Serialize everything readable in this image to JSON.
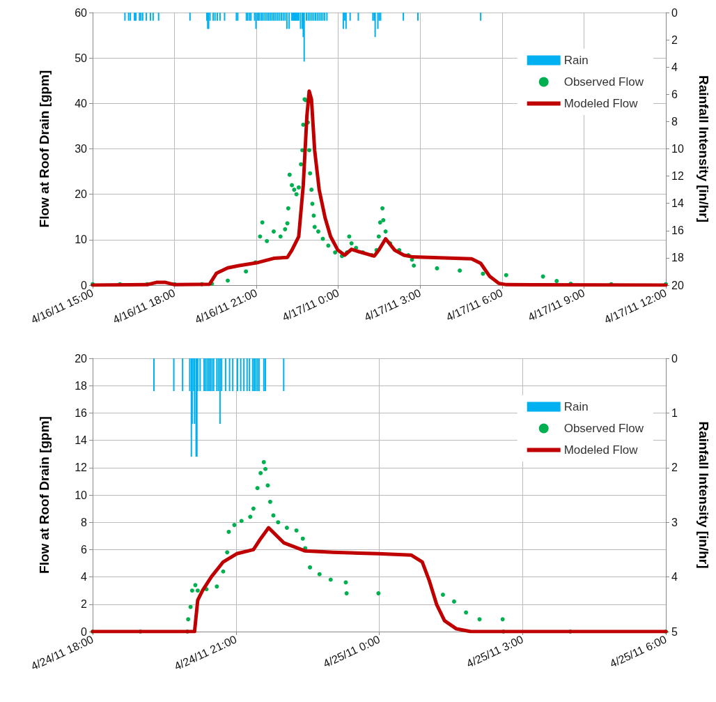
{
  "chart_data": [
    {
      "type": "line",
      "ylabel": "Flow at Roof Drain [gpm]",
      "y2label": "Rainfall Intensity [in/hr]",
      "xlim": [
        "--04-16T15:00",
        "--04-17T12:00"
      ],
      "xticks": [
        {
          "value": "--04-16T15:00",
          "label": "4/16/11 15:00"
        },
        {
          "value": "--04-16T18:00",
          "label": "4/16/11 18:00"
        },
        {
          "value": "--04-16T21:00",
          "label": "4/16/11 21:00"
        },
        {
          "value": "--04-17T00:00",
          "label": "4/17/11 0:00"
        },
        {
          "value": "--04-17T03:00",
          "label": "4/17/11 3:00"
        },
        {
          "value": "--04-17T06:00",
          "label": "4/17/11 6:00"
        },
        {
          "value": "--04-17T09:00",
          "label": "4/17/11 9:00"
        },
        {
          "value": "--04-17T12:00",
          "label": "4/17/11 12:00"
        }
      ],
      "ylim": [
        0,
        60
      ],
      "yticks": [
        0,
        10,
        20,
        30,
        40,
        50,
        60
      ],
      "y2lim": [
        20,
        0
      ],
      "y2ticks": [
        0,
        2,
        4,
        6,
        8,
        10,
        12,
        14,
        16,
        18,
        20
      ],
      "grid": true,
      "legend": "top right",
      "series": [
        {
          "name": "Rain",
          "type": "bar",
          "axis": "y2",
          "color": "#00b0f0",
          "x": [
            "--04-16T16:11",
            "--04-16T16:19",
            "--04-16T16:23",
            "--04-16T16:32",
            "--04-16T16:35",
            "--04-16T16:43",
            "--04-16T16:46",
            "--04-16T16:50",
            "--04-16T16:58",
            "--04-16T17:07",
            "--04-16T17:13",
            "--04-16T17:25",
            "--04-16T18:34",
            "--04-16T19:11",
            "--04-16T19:13",
            "--04-16T19:15",
            "--04-16T19:18",
            "--04-16T19:25",
            "--04-16T19:29",
            "--04-16T19:34",
            "--04-16T19:40",
            "--04-16T19:50",
            "--04-16T20:16",
            "--04-16T20:19",
            "--04-16T20:38",
            "--04-16T20:41",
            "--04-16T20:45",
            "--04-16T20:48",
            "--04-16T20:56",
            "--04-16T20:59",
            "--04-16T21:03",
            "--04-16T21:06",
            "--04-16T21:10",
            "--04-16T21:13",
            "--04-16T21:17",
            "--04-16T21:21",
            "--04-16T21:25",
            "--04-16T21:28",
            "--04-16T21:32",
            "--04-16T21:36",
            "--04-16T21:39",
            "--04-16T21:43",
            "--04-16T21:47",
            "--04-16T21:51",
            "--04-16T21:55",
            "--04-16T21:59",
            "--04-16T22:03",
            "--04-16T22:07",
            "--04-16T22:12",
            "--04-16T22:18",
            "--04-16T22:21",
            "--04-16T22:24",
            "--04-16T22:27",
            "--04-16T22:30",
            "--04-16T22:33",
            "--04-16T22:37",
            "--04-16T22:41",
            "--04-16T22:43",
            "--04-16T22:45",
            "--04-16T22:50",
            "--04-16T22:54",
            "--04-16T22:58",
            "--04-16T23:02",
            "--04-16T23:06",
            "--04-16T23:10",
            "--04-16T23:14",
            "--04-16T23:18",
            "--04-16T23:22",
            "--04-16T23:26",
            "--04-16T23:30",
            "--04-16T23:35",
            "--04-17T00:11",
            "--04-17T00:14",
            "--04-17T00:17",
            "--04-17T00:26",
            "--04-17T00:44",
            "--04-17T01:16",
            "--04-17T01:19",
            "--04-17T01:21",
            "--04-17T01:27",
            "--04-17T01:30",
            "--04-17T01:33",
            "--04-17T02:23",
            "--04-17T02:55",
            "--04-17T05:13"
          ],
          "values": [
            0.6,
            0.6,
            0.6,
            0.6,
            0.6,
            0.6,
            0.6,
            0.6,
            0.6,
            0.6,
            0.6,
            0.6,
            0.6,
            0.6,
            1.2,
            1.2,
            0.6,
            0.6,
            0.6,
            0.6,
            0.6,
            0.6,
            0.6,
            0.6,
            0.6,
            0.6,
            0.6,
            0.6,
            0.6,
            1.2,
            0.6,
            0.6,
            0.6,
            0.6,
            0.6,
            0.6,
            0.6,
            0.6,
            0.6,
            0.6,
            0.6,
            0.6,
            0.6,
            0.6,
            0.6,
            0.6,
            0.6,
            1.2,
            1.2,
            0.6,
            0.6,
            0.6,
            0.6,
            0.6,
            0.6,
            1.2,
            1.2,
            1.8,
            3.6,
            0.6,
            0.6,
            0.6,
            0.6,
            0.6,
            0.6,
            0.6,
            0.6,
            0.6,
            0.6,
            0.6,
            0.6,
            1.2,
            0.6,
            1.2,
            0.6,
            0.6,
            0.6,
            0.6,
            1.8,
            1.2,
            0.6,
            0.6,
            0.6,
            0.6,
            0.6
          ]
        },
        {
          "name": "Observed Flow",
          "type": "scatter",
          "marker": "circle",
          "color": "#00b050",
          "x": [
            "--04-16T15:00",
            "--04-16T16:00",
            "--04-16T17:00",
            "--04-16T18:00",
            "--04-16T19:00",
            "--04-16T19:22",
            "--04-16T19:57",
            "--04-16T20:37",
            "--04-16T20:58",
            "--04-16T21:08",
            "--04-16T21:13",
            "--04-16T21:23",
            "--04-16T21:38",
            "--04-16T21:53",
            "--04-16T22:03",
            "--04-16T22:08",
            "--04-16T22:10",
            "--04-16T22:13",
            "--04-16T22:18",
            "--04-16T22:23",
            "--04-16T22:28",
            "--04-16T22:33",
            "--04-16T22:38",
            "--04-16T22:41",
            "--04-16T22:43",
            "--04-16T22:46",
            "--04-16T22:48",
            "--04-16T22:53",
            "--04-16T22:56",
            "--04-16T22:58",
            "--04-16T23:01",
            "--04-16T23:03",
            "--04-16T23:06",
            "--04-16T23:08",
            "--04-16T23:16",
            "--04-16T23:26",
            "--04-16T23:38",
            "--04-16T23:53",
            "--04-17T00:08",
            "--04-17T00:19",
            "--04-17T00:24",
            "--04-17T00:29",
            "--04-17T00:39",
            "--04-17T00:54",
            "--04-17T01:14",
            "--04-17T01:24",
            "--04-17T01:29",
            "--04-17T01:32",
            "--04-17T01:37",
            "--04-17T01:39",
            "--04-17T01:44",
            "--04-17T01:54",
            "--04-17T02:14",
            "--04-17T02:34",
            "--04-17T02:42",
            "--04-17T02:46",
            "--04-17T03:37",
            "--04-17T04:27",
            "--04-17T05:18",
            "--04-17T06:09",
            "--04-17T07:30",
            "--04-17T08:00",
            "--04-17T08:31",
            "--04-17T10:00",
            "--04-17T12:00"
          ],
          "values": [
            0.2,
            0.2,
            0.2,
            0.2,
            0.2,
            0.3,
            1,
            3,
            5,
            10.7,
            13.8,
            9.7,
            11.8,
            10.7,
            12.3,
            13.6,
            16.9,
            24.3,
            22,
            21,
            20,
            21.5,
            26.6,
            29.7,
            35.3,
            40.9,
            40.7,
            35.8,
            29.7,
            24.6,
            21,
            17.9,
            15.3,
            12.8,
            11.8,
            10.2,
            8.7,
            7.2,
            6.4,
            7.2,
            10.7,
            9.2,
            8.2,
            7.2,
            6.6,
            7.7,
            10.7,
            13.8,
            16.9,
            14.3,
            11.8,
            9.2,
            7.7,
            6.6,
            5.6,
            4.3,
            3.7,
            3.2,
            2.5,
            2.2,
            1.9,
            0.9,
            0.3,
            0.2,
            0.2
          ]
        },
        {
          "name": "Modeled Flow",
          "type": "line",
          "marker": "none",
          "color": "#c00000",
          "x": [
            "--04-16T15:00",
            "--04-16T17:00",
            "--04-16T17:20",
            "--04-16T17:40",
            "--04-16T18:00",
            "--04-16T19:17",
            "--04-16T19:32",
            "--04-16T19:57",
            "--04-16T20:22",
            "--04-16T21:00",
            "--04-16T21:38",
            "--04-16T22:08",
            "--04-16T22:18",
            "--04-16T22:33",
            "--04-16T22:43",
            "--04-16T22:51",
            "--04-16T22:56",
            "--04-16T23:01",
            "--04-16T23:08",
            "--04-16T23:18",
            "--04-16T23:31",
            "--04-16T23:43",
            "--04-16T23:59",
            "--04-17T00:14",
            "--04-17T00:29",
            "--04-17T00:44",
            "--04-17T01:19",
            "--04-17T01:29",
            "--04-17T01:44",
            "--04-17T02:04",
            "--04-17T02:24",
            "--04-17T02:44",
            "--04-17T04:53",
            "--04-17T05:13",
            "--04-17T05:33",
            "--04-17T05:53",
            "--04-17T06:09",
            "--04-17T12:00"
          ],
          "values": [
            0,
            0.1,
            0.6,
            0.6,
            0.1,
            0.2,
            2.6,
            3.8,
            4.3,
            4.9,
            5.9,
            6.1,
            7.7,
            10.7,
            22,
            37.3,
            42.7,
            40.9,
            29.7,
            21,
            14.8,
            10.7,
            7.7,
            6.6,
            7.9,
            7.4,
            6.4,
            7.7,
            10.2,
            7.7,
            6.6,
            6.2,
            5.8,
            4.8,
            1.9,
            0.4,
            0.1,
            0
          ]
        }
      ]
    },
    {
      "type": "line",
      "ylabel": "Flow at Roof Drain [gpm]",
      "y2label": "Rainfall Intensity [in/hr]",
      "xlim": [
        "--04-24T18:00",
        "--04-25T06:00"
      ],
      "xticks": [
        {
          "value": "--04-24T18:00",
          "label": "4/24/11 18:00"
        },
        {
          "value": "--04-24T21:00",
          "label": "4/24/11 21:00"
        },
        {
          "value": "--04-25T00:00",
          "label": "4/25/11 0:00"
        },
        {
          "value": "--04-25T03:00",
          "label": "4/25/11 3:00"
        },
        {
          "value": "--04-25T06:00",
          "label": "4/25/11 6:00"
        }
      ],
      "ylim": [
        0,
        20
      ],
      "yticks": [
        0,
        2,
        4,
        6,
        8,
        10,
        12,
        14,
        16,
        18,
        20
      ],
      "y2lim": [
        5,
        0
      ],
      "y2ticks": [
        0,
        1,
        2,
        3,
        4,
        5
      ],
      "grid": true,
      "legend": "top right",
      "series": [
        {
          "name": "Rain",
          "type": "bar",
          "axis": "y2",
          "color": "#00b0f0",
          "x": [
            "--04-24T19:17",
            "--04-24T19:42",
            "--04-24T19:53",
            "--04-24T20:02",
            "--04-24T20:04",
            "--04-24T20:05",
            "--04-24T20:07",
            "--04-24T20:08",
            "--04-24T20:10",
            "--04-24T20:11",
            "--04-24T20:12",
            "--04-24T20:15",
            "--04-24T20:20",
            "--04-24T20:22",
            "--04-24T20:24",
            "--04-24T20:26",
            "--04-24T20:28",
            "--04-24T20:30",
            "--04-24T20:32",
            "--04-24T20:36",
            "--04-24T20:38",
            "--04-24T20:40",
            "--04-24T20:42",
            "--04-24T20:47",
            "--04-24T20:52",
            "--04-24T20:56",
            "--04-24T21:02",
            "--04-24T21:06",
            "--04-24T21:10",
            "--04-24T21:14",
            "--04-24T21:17",
            "--04-24T21:21",
            "--04-24T21:23",
            "--04-24T21:25",
            "--04-24T21:27",
            "--04-24T21:29",
            "--04-24T21:35",
            "--04-24T21:37",
            "--04-24T22:00"
          ],
          "values": [
            0.6,
            0.6,
            0.6,
            0.6,
            1.8,
            1.2,
            0.6,
            1.2,
            1.8,
            1.8,
            0.6,
            0.6,
            0.6,
            0.6,
            0.6,
            0.6,
            0.6,
            0.6,
            0.6,
            0.6,
            0.6,
            1.2,
            0.6,
            0.6,
            0.6,
            0.6,
            0.6,
            0.6,
            0.6,
            0.6,
            0.6,
            0.6,
            0.6,
            0.6,
            0.6,
            0.6,
            0.6,
            0.6,
            0.6
          ]
        },
        {
          "name": "Observed Flow",
          "type": "scatter",
          "marker": "circle",
          "color": "#00b050",
          "x": [
            "--04-24T18:00",
            "--04-24T19:00",
            "--04-24T19:59",
            "--04-24T20:00",
            "--04-24T20:03",
            "--04-24T20:05",
            "--04-24T20:09",
            "--04-24T20:12",
            "--04-24T20:23",
            "--04-24T20:36",
            "--04-24T20:44",
            "--04-24T20:49",
            "--04-24T20:51",
            "--04-24T20:58",
            "--04-24T21:07",
            "--04-24T21:18",
            "--04-24T21:22",
            "--04-24T21:27",
            "--04-24T21:31",
            "--04-24T21:35",
            "--04-24T21:37",
            "--04-24T21:40",
            "--04-24T21:43",
            "--04-24T21:47",
            "--04-24T21:53",
            "--04-24T22:04",
            "--04-24T22:16",
            "--04-24T22:24",
            "--04-24T22:27",
            "--04-24T22:33",
            "--04-24T22:45",
            "--04-24T22:59",
            "--04-24T23:18",
            "--04-24T23:19",
            "--04-24T23:59",
            "--04-25T01:20",
            "--04-25T01:34",
            "--04-25T01:49",
            "--04-25T02:06",
            "--04-25T02:35",
            "--04-25T02:36",
            "--04-25T04:00",
            "--04-25T06:00"
          ],
          "values": [
            0,
            0,
            0,
            0.9,
            1.8,
            3,
            3.4,
            3,
            3.1,
            3.3,
            4.4,
            5.8,
            7.3,
            7.8,
            8.1,
            8.4,
            9,
            10.5,
            11.6,
            12.4,
            11.9,
            10.7,
            9.5,
            8.5,
            8,
            7.6,
            7.4,
            6.8,
            6.1,
            4.7,
            4.2,
            3.8,
            3.6,
            2.8,
            2.8,
            2.7,
            2.2,
            1.4,
            0.9,
            0.9,
            0,
            0,
            0
          ]
        },
        {
          "name": "Modeled Flow",
          "type": "line",
          "marker": "none",
          "color": "#c00000",
          "x": [
            "--04-24T18:00",
            "--04-24T20:08",
            "--04-24T20:12",
            "--04-24T20:18",
            "--04-24T20:29",
            "--04-24T20:44",
            "--04-24T21:01",
            "--04-24T21:22",
            "--04-24T21:31",
            "--04-24T21:41",
            "--04-24T22:00",
            "--04-24T22:27",
            "--04-24T23:02",
            "--04-24T23:59",
            "--04-25T00:40",
            "--04-25T00:54",
            "--04-25T01:03",
            "--04-25T01:12",
            "--04-25T01:22",
            "--04-25T01:37",
            "--04-25T01:55",
            "--04-25T06:00"
          ],
          "values": [
            0,
            0,
            2.3,
            3,
            4,
            5.1,
            5.7,
            6,
            6.8,
            7.6,
            6.5,
            5.9,
            5.8,
            5.7,
            5.6,
            5.1,
            3.7,
            2,
            0.8,
            0.2,
            0,
            0
          ]
        }
      ]
    }
  ]
}
